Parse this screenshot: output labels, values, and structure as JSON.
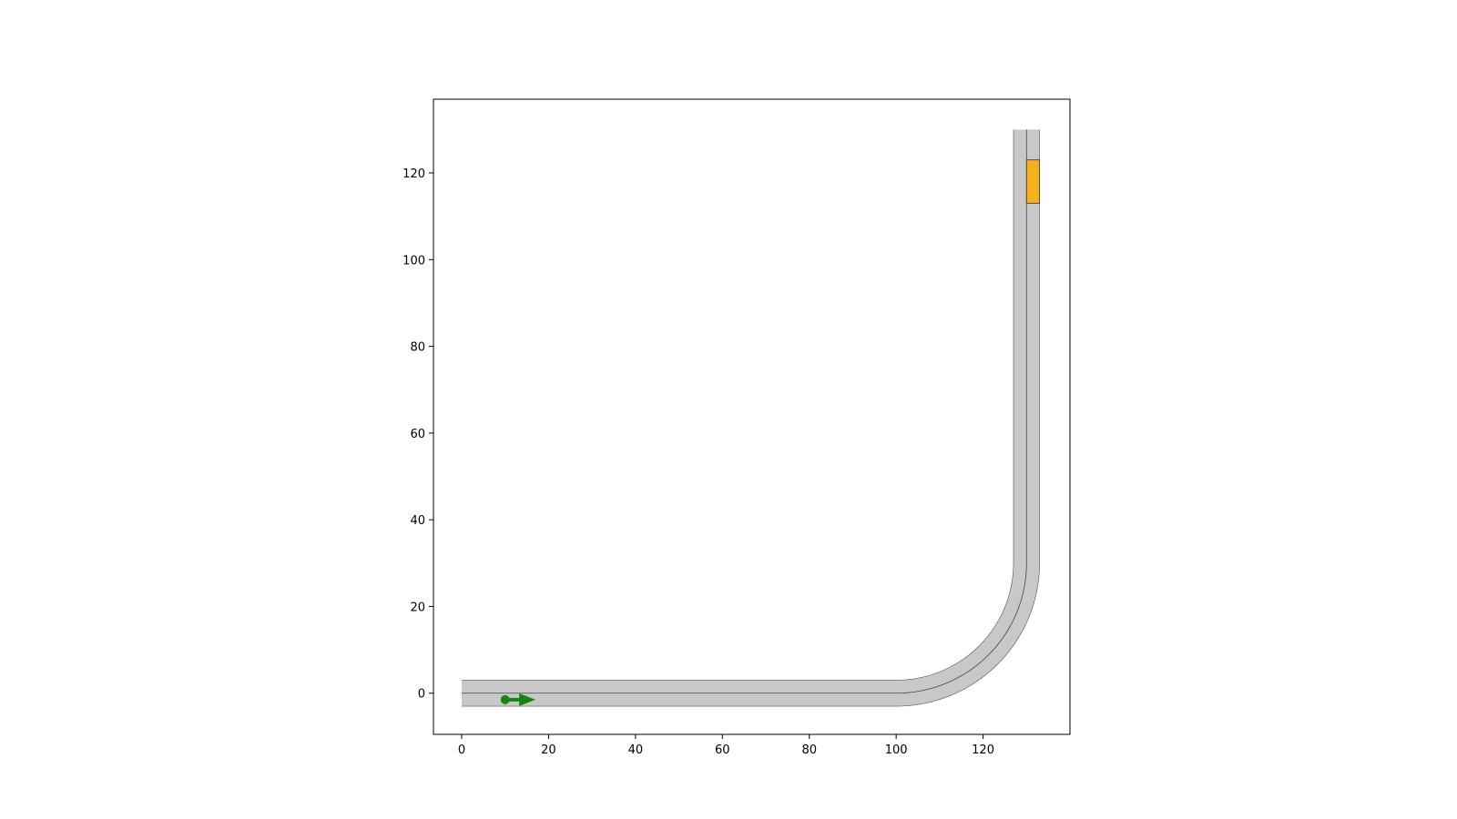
{
  "chart_data": {
    "type": "scatter",
    "title": "",
    "xlabel": "",
    "ylabel": "",
    "xlim": [
      -6.5,
      140
    ],
    "ylim": [
      -9.5,
      137
    ],
    "x_ticks": [
      0,
      20,
      40,
      60,
      80,
      100,
      120
    ],
    "y_ticks": [
      0,
      20,
      40,
      60,
      80,
      100,
      120
    ],
    "grid": false,
    "aspect": "equal",
    "road": {
      "centerline": {
        "straight_start": [
          0,
          0
        ],
        "straight_end": [
          100,
          0
        ],
        "arc_center": [
          100,
          30
        ],
        "arc_radius": 30,
        "vertical_start": [
          130,
          30
        ],
        "vertical_end": [
          130,
          130
        ]
      },
      "half_width": 3,
      "surface_color": "#c8c8c8",
      "edge_color": "#555555",
      "centerline_color": "#444444"
    },
    "ego_vehicle": {
      "x": 10,
      "y": -1.5,
      "heading_dx": 7,
      "heading_dy": 0,
      "color": "#118811"
    },
    "obstacle": {
      "x_min": 130,
      "x_max": 133,
      "y_min": 113,
      "y_max": 123,
      "color": "#f5b01b",
      "edge_color": "#333333"
    }
  }
}
